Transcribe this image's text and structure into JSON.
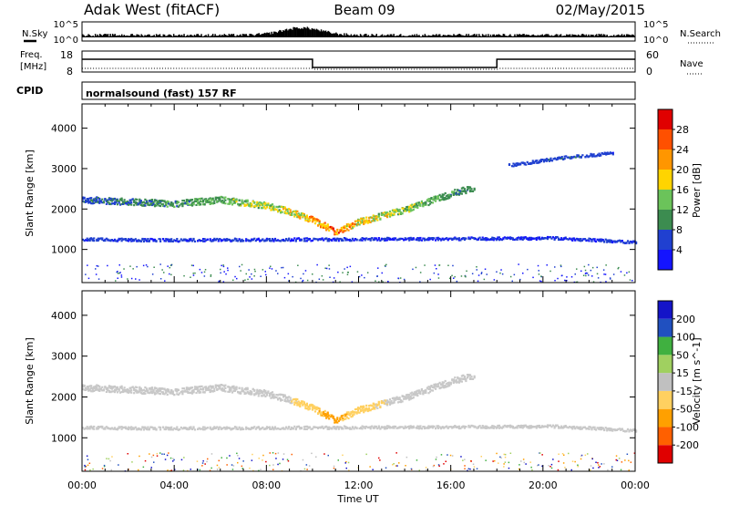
{
  "header": {
    "station": "Adak West (fitACF)",
    "beam": "Beam 09",
    "date": "02/May/2015"
  },
  "sky_panel": {
    "left_label": "N.Sky",
    "right_label": "N.Search",
    "left_ticks": [
      "10^5",
      "10^0"
    ],
    "right_ticks": [
      "10^5",
      "10^0"
    ]
  },
  "freq_panel": {
    "left_label_1": "Freq.",
    "left_label_2": "[MHz]",
    "right_label": "Nave",
    "left_ticks": [
      "18",
      "8"
    ],
    "right_ticks": [
      "60",
      "0"
    ]
  },
  "cpid_panel": {
    "label": "CPID",
    "program": "normalsound (fast) 157 RF"
  },
  "x_axis": {
    "title": "Time UT",
    "ticks": [
      "00:00",
      "04:00",
      "08:00",
      "12:00",
      "16:00",
      "20:00",
      "00:00"
    ]
  },
  "colors": {
    "power_scale": [
      "#1414ff",
      "#2040d0",
      "#3c8c50",
      "#6bc35a",
      "#ffd400",
      "#ff9600",
      "#ff5000",
      "#e00000"
    ],
    "velocity_scale": [
      "#e00000",
      "#ff6000",
      "#ffa000",
      "#ffd060",
      "#c0c0c0",
      "#a0d060",
      "#40b040",
      "#2050c0",
      "#1414c8"
    ],
    "ground_scatter": "#c8c8c8"
  },
  "chart_data": [
    {
      "type": "heatmap",
      "title": "Power",
      "xlabel": "Time UT",
      "ylabel": "Slant Range [km]",
      "xlim": [
        "00:00",
        "24:00"
      ],
      "ylim": [
        180,
        4600
      ],
      "y_ticks": [
        1000,
        2000,
        3000,
        4000
      ],
      "colorbar": {
        "label": "Power [dB]",
        "ticks": [
          "4",
          "8",
          "12",
          "16",
          "20",
          "24",
          "28"
        ],
        "range": [
          0,
          32
        ]
      },
      "echo_bands": [
        {
          "name": "main",
          "t": [
            0,
            2,
            4,
            6,
            8,
            9,
            10,
            11,
            12,
            14,
            16,
            17
          ],
          "range": [
            2250,
            2200,
            2150,
            2250,
            2100,
            1950,
            1750,
            1450,
            1700,
            2000,
            2400,
            2550
          ],
          "power_db": [
            8,
            10,
            12,
            14,
            18,
            20,
            24,
            28,
            22,
            16,
            12,
            10
          ]
        },
        {
          "name": "near",
          "t": [
            0,
            4,
            20.5,
            24
          ],
          "range": [
            1270,
            1250,
            1300,
            1200
          ],
          "power_db": [
            6,
            5,
            5,
            6
          ]
        },
        {
          "name": "far",
          "t": [
            18.5,
            21,
            23
          ],
          "range": [
            3100,
            3300,
            3400
          ],
          "power_db": [
            6,
            8,
            6
          ]
        }
      ]
    },
    {
      "type": "heatmap",
      "title": "Velocity",
      "xlabel": "Time UT",
      "ylabel": "Slant Range [km]",
      "xlim": [
        "00:00",
        "24:00"
      ],
      "ylim": [
        180,
        4600
      ],
      "y_ticks": [
        1000,
        2000,
        3000,
        4000
      ],
      "colorbar": {
        "label": "Velocity [m s^-1]",
        "ticks": [
          "-200",
          "-100",
          "-50",
          "-15",
          "15",
          "50",
          "100",
          "200"
        ],
        "range": [
          -250,
          250
        ]
      },
      "echo_bands": [
        {
          "name": "main",
          "t": [
            0,
            2,
            4,
            6,
            8,
            9,
            10,
            11,
            12,
            14,
            16,
            17
          ],
          "range": [
            2250,
            2200,
            2150,
            2250,
            2100,
            1950,
            1750,
            1450,
            1700,
            2000,
            2400,
            2550
          ],
          "velocity": [
            0,
            0,
            0,
            0,
            0,
            -10,
            -40,
            -60,
            -30,
            0,
            0,
            10
          ]
        },
        {
          "name": "near",
          "t": [
            0,
            4,
            20.5,
            24
          ],
          "range": [
            1270,
            1250,
            1300,
            1200
          ],
          "velocity": [
            0,
            0,
            0,
            0
          ]
        }
      ]
    }
  ]
}
